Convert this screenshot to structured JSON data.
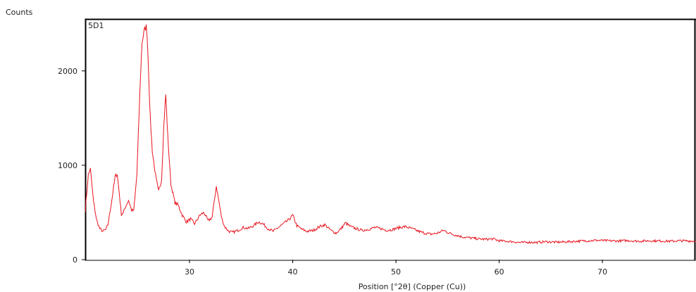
{
  "chart_data": {
    "type": "line",
    "sample_label": "5D1",
    "ylabel": "Counts",
    "xlabel": "Position [°2θ] (Copper (Cu))",
    "xlim": [
      19.9,
      79.0
    ],
    "ylim": [
      0,
      2550
    ],
    "x_ticks": [
      30,
      40,
      50,
      60,
      70
    ],
    "y_ticks": [
      0,
      1000,
      2000
    ],
    "line_color": "#e8141e",
    "series": [
      {
        "x": [
          19.9,
          20.2,
          20.4,
          20.7,
          21.0,
          21.3,
          21.6,
          21.9,
          22.1,
          22.5,
          22.8,
          23.0,
          23.2,
          23.4,
          23.6,
          23.8,
          24.1,
          24.4,
          24.6,
          24.9,
          25.2,
          25.4,
          25.6,
          25.8,
          25.9,
          26.0,
          26.2,
          26.4,
          26.7,
          27.0,
          27.3,
          27.5,
          27.7,
          27.9,
          28.2,
          28.6,
          28.9,
          29.3,
          29.7,
          30.1,
          30.5,
          31.0,
          31.4,
          31.8,
          32.2,
          32.5,
          32.6,
          32.8,
          33.1,
          33.4,
          33.8,
          34.2,
          34.7,
          35.2,
          35.7,
          36.2,
          36.7,
          37.1,
          37.6,
          38.1,
          38.6,
          39.1,
          39.6,
          40.0,
          40.4,
          40.9,
          41.4,
          42.0,
          42.6,
          43.1,
          43.7,
          44.2,
          44.7,
          45.1,
          45.6,
          46.1,
          46.7,
          47.3,
          47.9,
          48.5,
          49.1,
          49.7,
          50.3,
          50.9,
          51.5,
          52.2,
          52.8,
          53.4,
          54.0,
          54.6,
          55.2,
          55.8,
          56.5,
          57.2,
          58.0,
          58.7,
          59.4,
          60.0,
          60.7,
          61.4,
          62.1,
          62.8,
          63.6,
          64.5,
          65.5,
          66.5,
          67.5,
          68.5,
          69.5,
          70.5,
          71.5,
          72.5,
          73.5,
          74.5,
          75.5,
          76.5,
          77.5,
          78.5,
          79.0
        ],
        "y": [
          520,
          900,
          960,
          620,
          420,
          330,
          300,
          320,
          370,
          650,
          880,
          910,
          700,
          480,
          500,
          560,
          630,
          520,
          520,
          900,
          1800,
          2300,
          2420,
          2470,
          2380,
          2100,
          1500,
          1150,
          900,
          720,
          850,
          1400,
          1750,
          1300,
          800,
          600,
          580,
          470,
          400,
          430,
          380,
          470,
          500,
          410,
          450,
          700,
          780,
          650,
          450,
          350,
          300,
          290,
          310,
          340,
          330,
          360,
          400,
          380,
          330,
          300,
          340,
          380,
          420,
          470,
          360,
          320,
          300,
          310,
          350,
          370,
          310,
          280,
          330,
          390,
          350,
          330,
          310,
          320,
          340,
          330,
          310,
          320,
          340,
          350,
          330,
          300,
          280,
          270,
          280,
          310,
          280,
          260,
          240,
          230,
          220,
          215,
          220,
          200,
          195,
          190,
          180,
          185,
          182,
          190,
          185,
          188,
          195,
          200,
          205,
          200,
          198,
          202,
          195,
          200,
          198,
          195,
          200,
          198,
          195
        ]
      }
    ]
  }
}
